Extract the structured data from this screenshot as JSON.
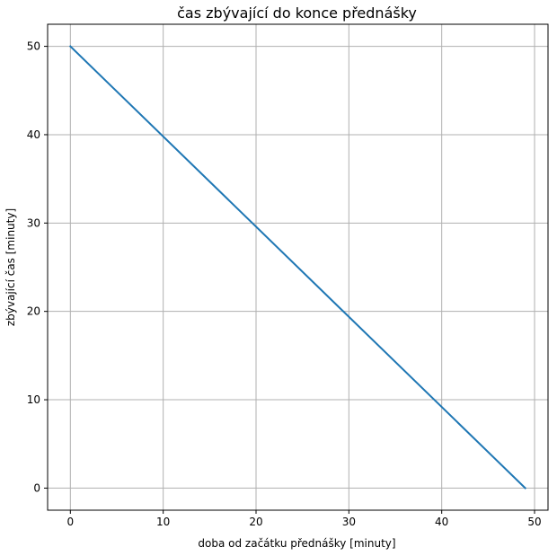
{
  "chart_data": {
    "type": "line",
    "title": "čas zbývající do konce přednášky",
    "xlabel": "doba od začátku přednášky [minuty]",
    "ylabel": "zbývající čas [minuty]",
    "xlim": [
      -2.45,
      51.45
    ],
    "ylim": [
      -2.5,
      52.5
    ],
    "xticks": [
      0,
      10,
      20,
      30,
      40,
      50
    ],
    "yticks": [
      0,
      10,
      20,
      30,
      40,
      50
    ],
    "grid": true,
    "series": [
      {
        "color": "#1f77b4",
        "x": [
          0,
          49
        ],
        "y": [
          50,
          0
        ]
      }
    ]
  }
}
